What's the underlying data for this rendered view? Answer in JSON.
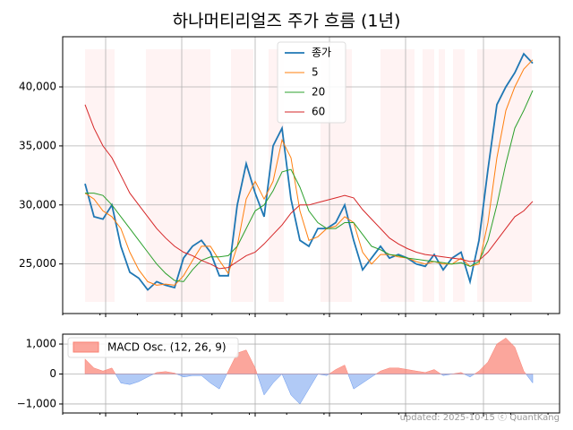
{
  "chart_data": [
    {
      "type": "line",
      "title": "하나머티리얼즈 주가 흐름 (1년)",
      "categories": [
        null,
        null,
        null,
        null,
        null,
        null,
        null,
        null,
        null,
        null,
        null,
        null,
        null,
        null,
        null,
        null,
        null,
        null,
        null,
        null,
        null,
        null,
        null,
        null,
        null,
        null,
        null,
        null,
        null,
        null,
        null,
        null,
        null,
        null,
        null,
        null,
        null,
        null,
        null,
        null,
        null,
        null,
        null,
        null,
        null,
        null,
        null,
        null,
        null,
        null,
        null
      ],
      "series": [
        {
          "name": "종가",
          "color": "#1f77b4",
          "values": [
            31800,
            29000,
            28800,
            30000,
            26500,
            24300,
            23800,
            22800,
            23500,
            23200,
            23000,
            25500,
            26500,
            27000,
            26000,
            24000,
            24000,
            30000,
            33500,
            31000,
            29000,
            35000,
            36500,
            30500,
            27000,
            26500,
            28000,
            28000,
            28500,
            30000,
            27000,
            24500,
            25500,
            26500,
            25500,
            25800,
            25500,
            25000,
            24800,
            25800,
            24500,
            25500,
            26000,
            23500,
            27000,
            33000,
            38500,
            40000,
            41200,
            42800,
            42000
          ]
        },
        {
          "name": "5",
          "color": "#ff7f0e",
          "values": [
            31000,
            30500,
            29500,
            29000,
            28000,
            26000,
            24500,
            23500,
            23200,
            23300,
            23200,
            24000,
            25300,
            26500,
            26500,
            25300,
            24200,
            26500,
            30500,
            32000,
            30500,
            32000,
            35500,
            34000,
            29500,
            27000,
            27300,
            28000,
            28200,
            29000,
            28500,
            26000,
            25000,
            25800,
            25800,
            25600,
            25500,
            25200,
            25000,
            25200,
            25000,
            25000,
            25500,
            24800,
            25000,
            28500,
            34000,
            38000,
            40000,
            41500,
            42300
          ]
        },
        {
          "name": "20",
          "color": "#2ca02c",
          "values": [
            31000,
            31000,
            30800,
            30000,
            29000,
            28000,
            27000,
            26000,
            25000,
            24200,
            23600,
            23500,
            24500,
            25300,
            25600,
            25600,
            25700,
            26500,
            28000,
            29500,
            30000,
            31200,
            32800,
            33000,
            31500,
            29500,
            28500,
            28000,
            28000,
            28500,
            28500,
            27500,
            26500,
            26200,
            25800,
            25700,
            25500,
            25400,
            25300,
            25200,
            25100,
            25000,
            25100,
            24800,
            25200,
            27000,
            30000,
            33500,
            36500,
            38000,
            39700
          ]
        },
        {
          "name": "60",
          "color": "#d62728",
          "values": [
            38500,
            36500,
            35000,
            34000,
            32500,
            31000,
            30000,
            29000,
            28000,
            27200,
            26500,
            26000,
            25700,
            25300,
            25000,
            24600,
            24700,
            25200,
            25700,
            26000,
            26700,
            27500,
            28300,
            29300,
            30000,
            30000,
            30200,
            30400,
            30600,
            30800,
            30600,
            29600,
            28800,
            28000,
            27200,
            26700,
            26300,
            26000,
            25800,
            25700,
            25600,
            25500,
            25400,
            25200,
            25300,
            26000,
            27000,
            28000,
            29000,
            29500,
            30300
          ]
        }
      ],
      "ylim": [
        20800,
        44250
      ],
      "yticks": [
        {
          "value": 25000,
          "label": "25,000"
        },
        {
          "value": 30000,
          "label": "30,000"
        },
        {
          "value": 35000,
          "label": "35,000"
        },
        {
          "value": 40000,
          "label": "40,000"
        }
      ],
      "grid": true,
      "legend": "upper center"
    },
    {
      "type": "area",
      "series": [
        {
          "name": "MACD Osc. (12, 26, 9)",
          "color": "#fa8072",
          "negative_color": "#6495ed",
          "values": [
            500,
            200,
            100,
            200,
            -300,
            -350,
            -250,
            -100,
            50,
            80,
            30,
            -100,
            -50,
            -50,
            -300,
            -500,
            100,
            700,
            800,
            200,
            -700,
            -300,
            0,
            -700,
            -1000,
            -500,
            0,
            -50,
            150,
            300,
            -500,
            -300,
            -100,
            100,
            200,
            200,
            150,
            100,
            50,
            150,
            -50,
            0,
            50,
            -100,
            100,
            400,
            1000,
            1200,
            900,
            100,
            -300
          ]
        }
      ],
      "ylim": [
        -1300,
        1330
      ],
      "yticks": [
        {
          "value": -1000,
          "label": "−1,000"
        },
        0,
        {
          "value": 1000,
          "label": "1,000"
        }
      ],
      "grid": true,
      "legend": "upper left"
    }
  ],
  "footer": "updated: 2025-10-15 ⓒ QuantKang"
}
